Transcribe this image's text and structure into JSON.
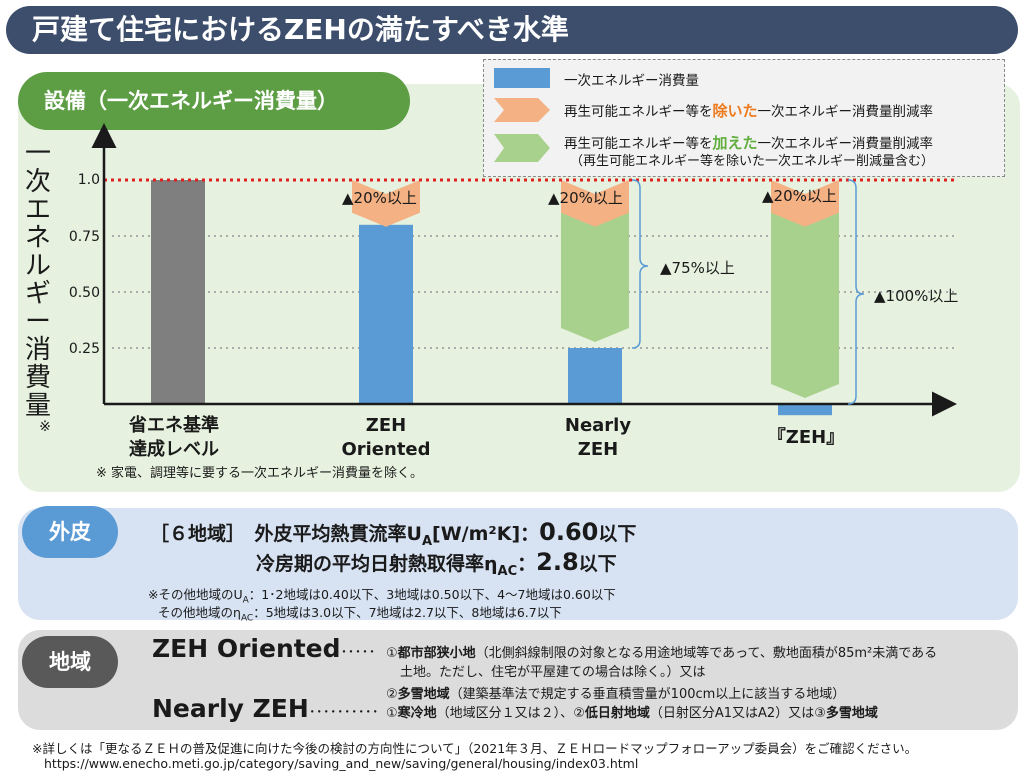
{
  "title": "戸建て住宅におけるZEHの満たすべき水準",
  "equipment_label": "設備（一次エネルギー消費量）",
  "legend": {
    "item1": "一次エネルギー消費量",
    "item2_pre": "再生可能エネルギー等を",
    "item2_em": "除いた",
    "item2_post": "一次エネルギー消費量削減率",
    "item3_pre": "再生可能エネルギー等を",
    "item3_em": "加えた",
    "item3_post": "一次エネルギー消費量削減率",
    "item3_sub": "（再生可能エネルギー等を除いた一次エネルギー削減量含む）"
  },
  "y_axis_label": "一次エネルギー消費量",
  "y_axis_mark": "※",
  "colors": {
    "gray": "#7f7f7f",
    "blue": "#5b9bd5",
    "orange": "#f4b183",
    "green": "#a9d18e",
    "red": "#e02020"
  },
  "chart_data": {
    "type": "bar",
    "ylim": [
      0,
      1.0
    ],
    "yticks": [
      "1.0",
      "0.75",
      "0.50",
      "0.25"
    ],
    "categories": [
      {
        "line1": "省エネ基準",
        "line2": "達成レベル"
      },
      {
        "line1": "ZEH",
        "line2": "Oriented"
      },
      {
        "line1": "Nearly",
        "line2": "ZEH"
      },
      {
        "line1": "『ZEH』",
        "line2": ""
      }
    ],
    "bars": [
      {
        "consumption": 1.0
      },
      {
        "consumption": 0.8,
        "reduction_excl": "▲20%以上"
      },
      {
        "consumption": 0.25,
        "reduction_excl": "▲20%以上",
        "reduction_incl": "▲75%以上"
      },
      {
        "consumption": -0.05,
        "reduction_excl": "▲20%以上",
        "reduction_incl": "▲100%以上"
      }
    ]
  },
  "eq_note": "※ 家電、調理等に要する一次エネルギー消費量を除く。",
  "envelope": {
    "label": "外皮",
    "region": "［６地域］",
    "ua_label": "外皮平均熱貫流率U",
    "ua_sub": "A",
    "ua_unit": "[W/m²K]",
    "ua_colon": "：",
    "ua_value": "0.60",
    "ua_suffix": "以下",
    "eta_label": "冷房期の平均日射熱取得率η",
    "eta_sub": "AC",
    "eta_colon": "：",
    "eta_value": "2.8",
    "eta_suffix": "以下",
    "note1_pre": "※その他地域のU",
    "note1_sub": "A",
    "note1_post": "：1･2地域は0.40以下、3地域は0.50以下、4～7地域は0.60以下",
    "note2_pre": "その他地域のη",
    "note2_sub": "AC",
    "note2_post": "：5地域は3.0以下、7地域は2.7以下、8地域は6.7以下"
  },
  "area": {
    "label": "地域",
    "oriented_label": "ZEH Oriented",
    "oriented_dots": "･････",
    "o1_num": "①",
    "o1_bold": "都市部狭小地",
    "o1_rest": "（北側斜線制限の対象となる用途地域等であって、敷地面積が85m²未満である",
    "o1_cont": "土地。ただし、住宅が平屋建ての場合は除く。）又は",
    "o2_num": "②",
    "o2_bold": "多雪地域",
    "o2_rest": "（建築基準法で規定する垂直積雪量が100cm以上に該当する地域）",
    "nearly_label": "Nearly ZEH",
    "nearly_dots": "･･････････",
    "n1_num": "①",
    "n1_bold": "寒冷地",
    "n1_rest": "（地域区分１又は２）、",
    "n2_num": "②",
    "n2_bold": "低日射地域",
    "n2_rest": "（日射区分A1又はA2）又は",
    "n3_num": "③",
    "n3_bold": "多雪地域"
  },
  "footer": {
    "line1": "※詳しくは「更なるＺＥＨの普及促進に向けた今後の検討の方向性について」（2021年３月、ＺＥＨロードマップフォローアップ委員会）をご確認ください。",
    "line2": "https://www.enecho.meti.go.jp/category/saving_and_new/saving/general/housing/index03.html"
  }
}
